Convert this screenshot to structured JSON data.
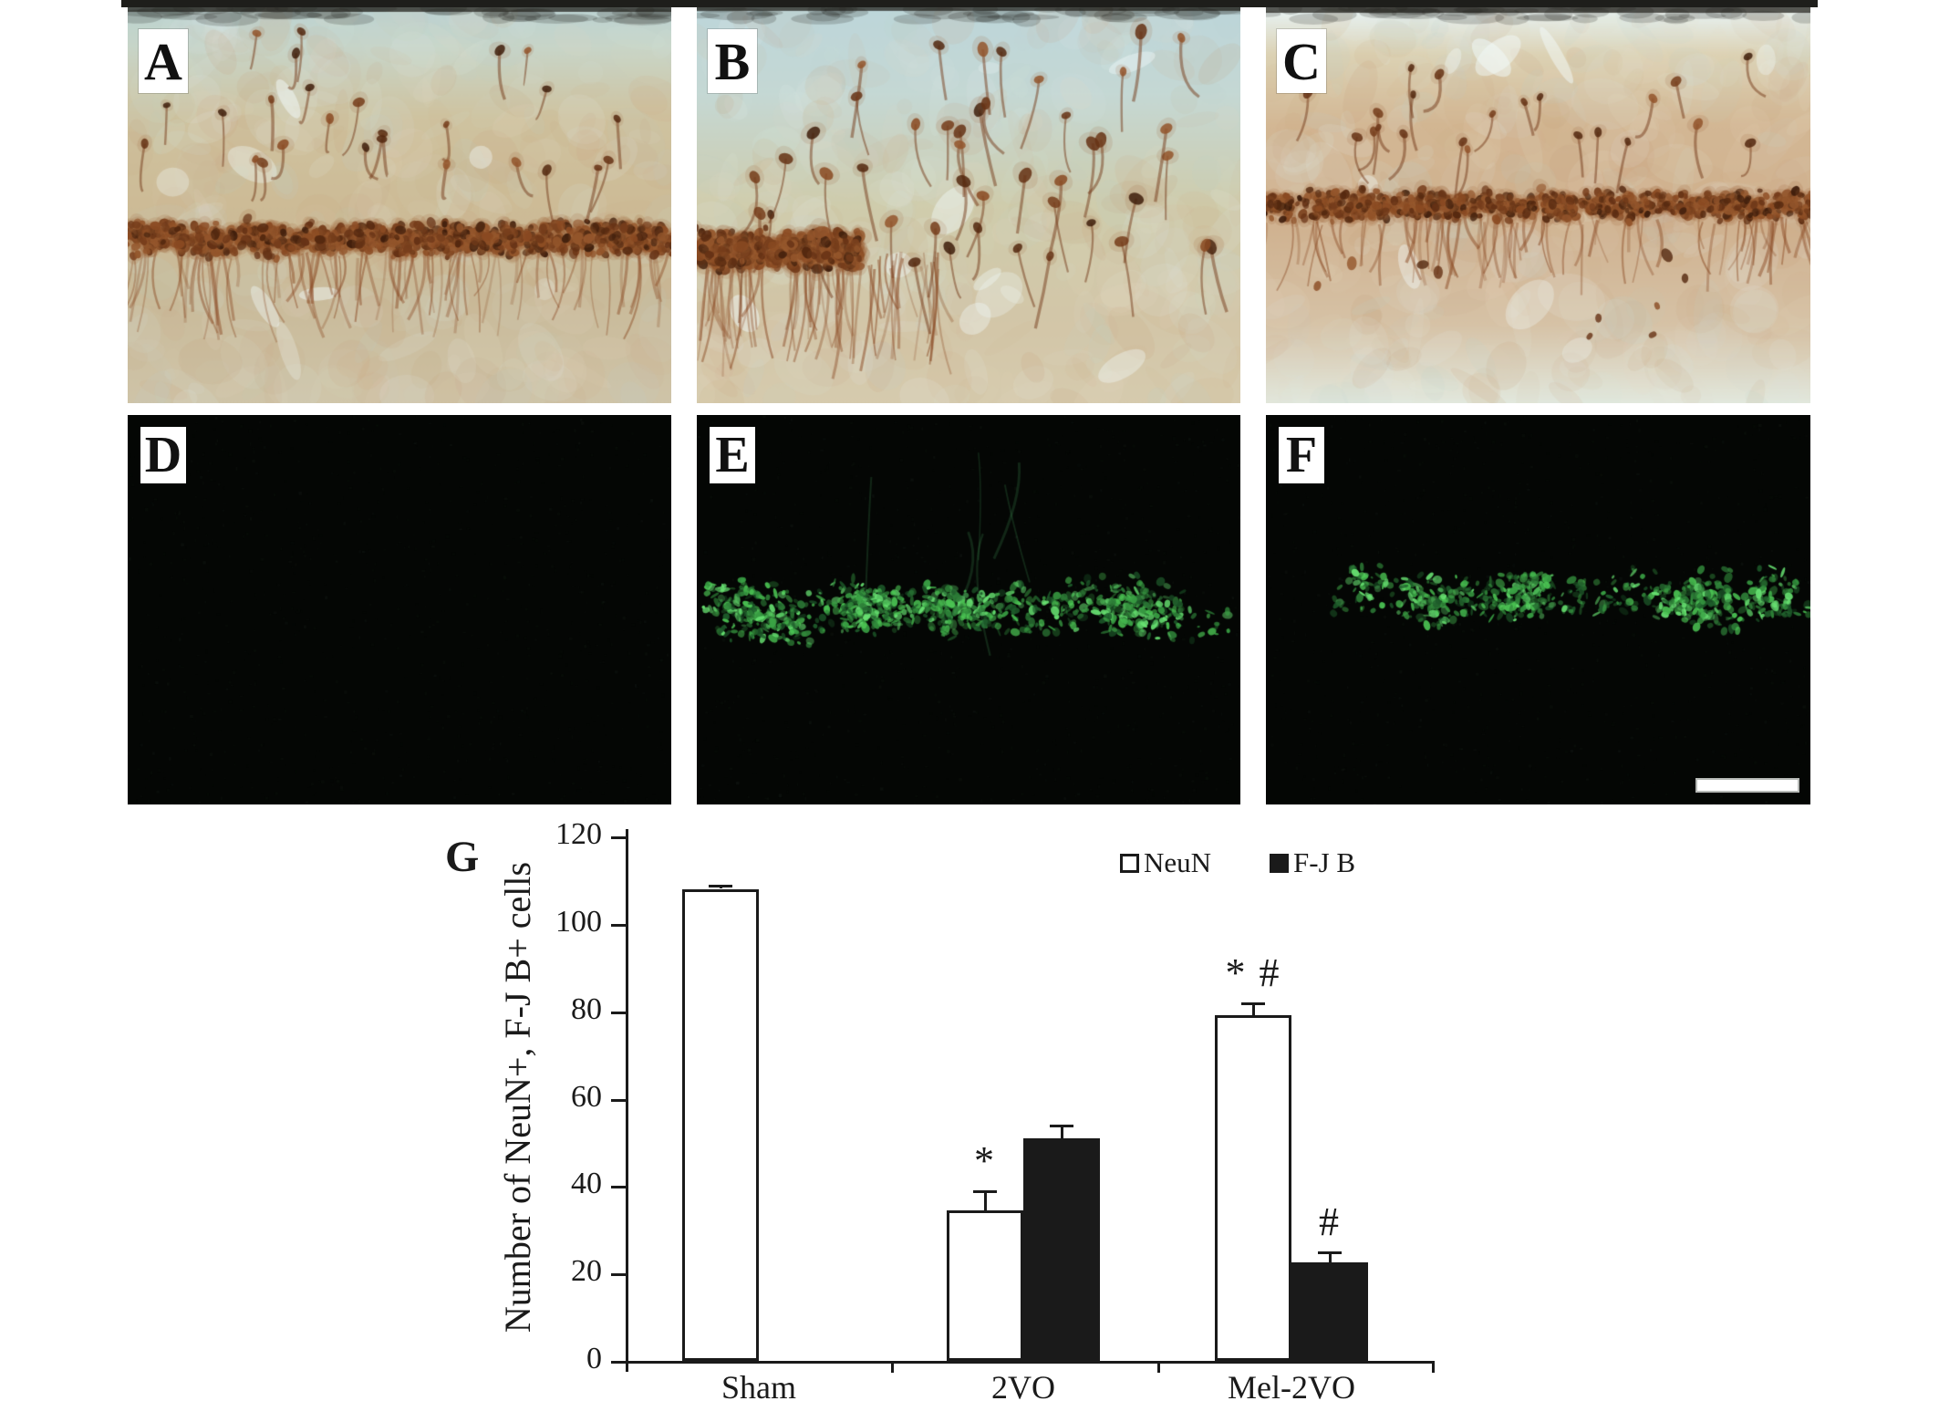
{
  "panels": [
    {
      "label": "A"
    },
    {
      "label": "B"
    },
    {
      "label": "C"
    },
    {
      "label": "D"
    },
    {
      "label": "E"
    },
    {
      "label": "F"
    }
  ],
  "chart_label": {
    "label": "G"
  },
  "scale_bar": {
    "present": true,
    "panel": "F",
    "color": "#ffffff"
  },
  "colors": {
    "dab_brown": "#6b3317",
    "fluoro_green": "#3ddb52",
    "axis": "#1a1a1a",
    "neun_bar_fill": "#ffffff",
    "fjb_bar_fill": "#1a1a1a"
  },
  "chart_data": {
    "type": "bar",
    "title": "",
    "xlabel": "",
    "ylabel": "Number of NeuN+, F-J B+ cells",
    "ylim": [
      0,
      120
    ],
    "yticks": [
      0,
      20,
      40,
      60,
      80,
      100,
      120
    ],
    "grid": false,
    "legend_position": "top-right",
    "categories": [
      "Sham",
      "2VO",
      "Mel-2VO"
    ],
    "series": [
      {
        "name": "NeuN",
        "fill": "#ffffff",
        "values": [
          108,
          34.5,
          79
        ],
        "errors": [
          1,
          4.5,
          3
        ],
        "sig_labels": [
          "",
          "*",
          "* #"
        ]
      },
      {
        "name": "F-J B",
        "fill": "#1a1a1a",
        "values": [
          0,
          51,
          22.5
        ],
        "errors": [
          0,
          3,
          2.5
        ],
        "sig_labels": [
          "",
          "",
          "#"
        ]
      }
    ]
  }
}
